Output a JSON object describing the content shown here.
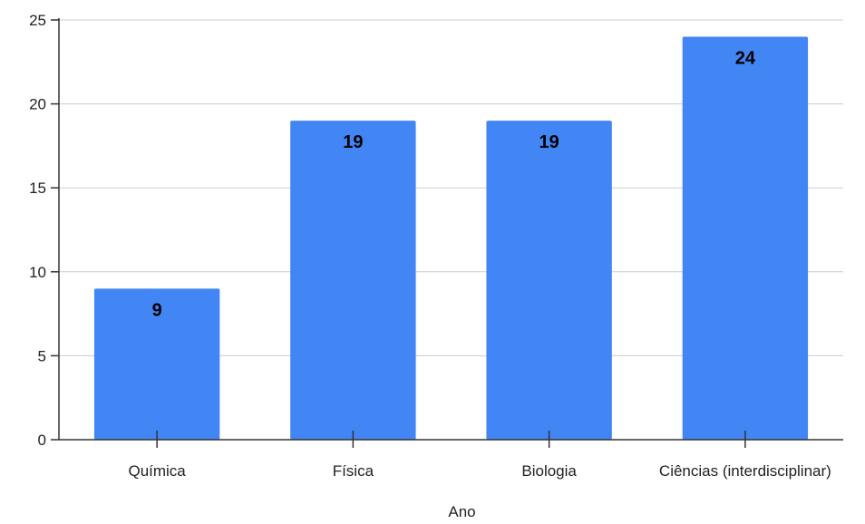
{
  "chart_data": {
    "type": "bar",
    "categories": [
      "Química",
      "Física",
      "Biologia",
      "Ciências (interdisciplinar)"
    ],
    "values": [
      9,
      19,
      19,
      24
    ],
    "title": "",
    "xlabel": "Ano",
    "ylabel": "",
    "ylim": [
      0,
      25
    ],
    "yticks": [
      0,
      5,
      10,
      15,
      20,
      25
    ],
    "data_labels": true,
    "grid": true,
    "legend": "none",
    "bar_color": "#4285f4"
  }
}
